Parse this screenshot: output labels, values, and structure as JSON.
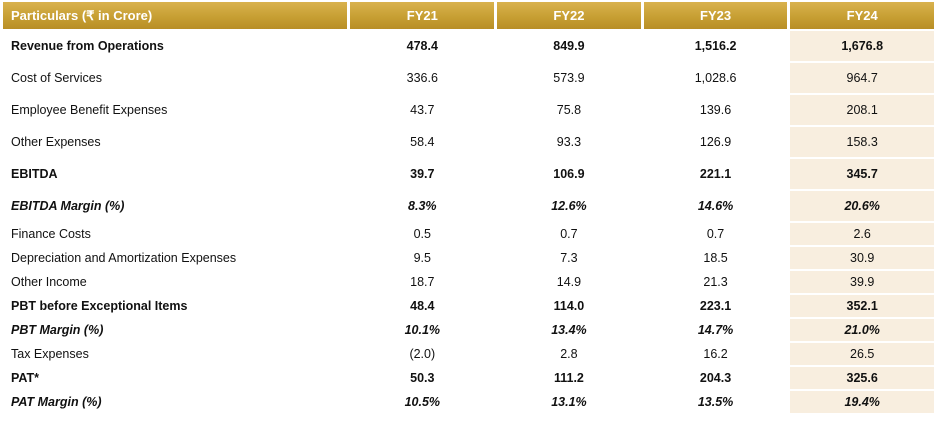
{
  "table": {
    "headers": [
      "Particulars (₹ in Crore)",
      "FY21",
      "FY22",
      "FY23",
      "FY24"
    ],
    "rows": [
      {
        "label": "Revenue from Operations",
        "values": [
          "478.4",
          "849.9",
          "1,516.2",
          "1,676.8"
        ],
        "style": "bold"
      },
      {
        "label": "Cost of Services",
        "values": [
          "336.6",
          "573.9",
          "1,028.6",
          "964.7"
        ],
        "style": "normal"
      },
      {
        "label": "Employee Benefit Expenses",
        "values": [
          "43.7",
          "75.8",
          "139.6",
          "208.1"
        ],
        "style": "normal"
      },
      {
        "label": "Other Expenses",
        "values": [
          "58.4",
          "93.3",
          "126.9",
          "158.3"
        ],
        "style": "normal"
      },
      {
        "label": "EBITDA",
        "values": [
          "39.7",
          "106.9",
          "221.1",
          "345.7"
        ],
        "style": "bold"
      },
      {
        "label": "EBITDA Margin (%)",
        "values": [
          "8.3%",
          "12.6%",
          "14.6%",
          "20.6%"
        ],
        "style": "italic"
      },
      {
        "label": "Finance Costs",
        "values": [
          "0.5",
          "0.7",
          "0.7",
          "2.6"
        ],
        "style": "normal"
      },
      {
        "label": "Depreciation and Amortization Expenses",
        "values": [
          "9.5",
          "7.3",
          "18.5",
          "30.9"
        ],
        "style": "normal"
      },
      {
        "label": "Other Income",
        "values": [
          "18.7",
          "14.9",
          "21.3",
          "39.9"
        ],
        "style": "normal"
      },
      {
        "label": "PBT before Exceptional Items",
        "values": [
          "48.4",
          "114.0",
          "223.1",
          "352.1"
        ],
        "style": "bold"
      },
      {
        "label": "PBT Margin (%)",
        "values": [
          "10.1%",
          "13.4%",
          "14.7%",
          "21.0%"
        ],
        "style": "italic"
      },
      {
        "label": "Tax Expenses",
        "values": [
          "(2.0)",
          "2.8",
          "16.2",
          "26.5"
        ],
        "style": "normal"
      },
      {
        "label": "PAT*",
        "values": [
          "50.3",
          "111.2",
          "204.3",
          "325.6"
        ],
        "style": "bold"
      },
      {
        "label": "PAT Margin (%)",
        "values": [
          "10.5%",
          "13.1%",
          "13.5%",
          "19.4%"
        ],
        "style": "italic"
      }
    ]
  },
  "colors": {
    "header_gold": "#c79f33",
    "highlight_column": "#f8eedf"
  }
}
